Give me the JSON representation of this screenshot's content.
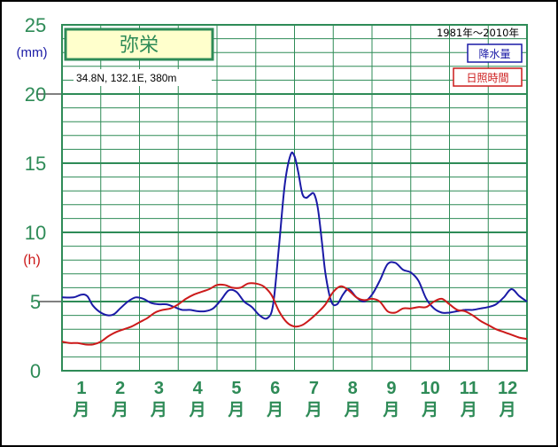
{
  "title_box": {
    "station": "弥栄"
  },
  "location": "34.8N,  132.1E,  380m",
  "period": "1981年〜2010年",
  "legend": {
    "precip_label": "降水量",
    "sun_label": "日照時間"
  },
  "colors": {
    "grid": "#2e8b57",
    "precip": "#1a1aa6",
    "sunshine": "#cc1a1a",
    "title_bg": "#ffffcc"
  },
  "chart_data": {
    "type": "line",
    "title": "弥栄",
    "y_ticks": [
      "0",
      "5",
      "10",
      "15",
      "20",
      "25"
    ],
    "y_unit_precip": "(mm)",
    "y_unit_sun": "(h)",
    "x_major_labels": [
      "1",
      "2",
      "3",
      "4",
      "5",
      "6",
      "7",
      "8",
      "9",
      "10",
      "11",
      "12"
    ],
    "x_unit": "月",
    "ylim": [
      0,
      25
    ],
    "xlim": [
      0.5,
      12.5
    ],
    "grid": true,
    "legend_position": "top-right",
    "series": [
      {
        "name": "降水量",
        "color": "#1a1aa6",
        "x": [
          0.5,
          0.8,
          1.0,
          1.15,
          1.3,
          1.5,
          1.7,
          1.85,
          2.0,
          2.2,
          2.4,
          2.6,
          2.8,
          3.0,
          3.2,
          3.4,
          3.6,
          3.8,
          4.0,
          4.2,
          4.4,
          4.6,
          4.8,
          5.0,
          5.2,
          5.4,
          5.6,
          5.8,
          5.95,
          6.1,
          6.25,
          6.4,
          6.5,
          6.6,
          6.7,
          6.8,
          6.9,
          7.0,
          7.1,
          7.2,
          7.3,
          7.45,
          7.6,
          7.75,
          7.9,
          8.1,
          8.3,
          8.5,
          8.7,
          8.9,
          9.1,
          9.3,
          9.5,
          9.7,
          9.9,
          10.1,
          10.3,
          10.5,
          10.7,
          10.9,
          11.1,
          11.3,
          11.5,
          11.7,
          11.9,
          12.1,
          12.3,
          12.5
        ],
        "values": [
          5.3,
          5.3,
          5.5,
          5.4,
          4.7,
          4.2,
          4.0,
          4.1,
          4.5,
          5.0,
          5.3,
          5.2,
          4.9,
          4.8,
          4.8,
          4.6,
          4.4,
          4.4,
          4.3,
          4.3,
          4.5,
          5.1,
          5.8,
          5.7,
          5.0,
          4.6,
          4.0,
          3.8,
          4.8,
          9.0,
          13.5,
          15.6,
          15.5,
          14.3,
          12.8,
          12.5,
          12.7,
          12.8,
          11.8,
          9.5,
          7.0,
          5.0,
          4.8,
          5.5,
          5.9,
          5.3,
          5.0,
          5.5,
          6.5,
          7.7,
          7.8,
          7.3,
          7.1,
          6.5,
          5.2,
          4.5,
          4.2,
          4.2,
          4.3,
          4.4,
          4.4,
          4.5,
          4.6,
          4.8,
          5.3,
          5.9,
          5.4,
          5.0
        ]
      },
      {
        "name": "日照時間",
        "color": "#cc1a1a",
        "x": [
          0.5,
          0.7,
          0.9,
          1.1,
          1.3,
          1.5,
          1.7,
          1.9,
          2.1,
          2.3,
          2.5,
          2.7,
          2.9,
          3.1,
          3.3,
          3.5,
          3.7,
          3.9,
          4.1,
          4.3,
          4.5,
          4.7,
          4.9,
          5.1,
          5.3,
          5.5,
          5.7,
          5.9,
          6.1,
          6.3,
          6.5,
          6.7,
          6.9,
          7.1,
          7.3,
          7.5,
          7.7,
          7.9,
          8.1,
          8.3,
          8.5,
          8.7,
          8.9,
          9.1,
          9.3,
          9.5,
          9.7,
          9.9,
          10.1,
          10.3,
          10.5,
          10.7,
          10.9,
          11.1,
          11.3,
          11.5,
          11.7,
          11.9,
          12.1,
          12.3,
          12.5
        ],
        "values": [
          2.1,
          2.0,
          2.0,
          1.9,
          1.9,
          2.1,
          2.5,
          2.8,
          3.0,
          3.2,
          3.5,
          3.8,
          4.2,
          4.4,
          4.5,
          4.8,
          5.2,
          5.5,
          5.7,
          5.9,
          6.2,
          6.2,
          6.0,
          6.0,
          6.3,
          6.3,
          6.1,
          5.5,
          4.3,
          3.5,
          3.2,
          3.3,
          3.7,
          4.2,
          4.8,
          5.7,
          6.1,
          5.8,
          5.3,
          5.1,
          5.2,
          5.0,
          4.3,
          4.2,
          4.5,
          4.5,
          4.6,
          4.6,
          5.0,
          5.2,
          4.8,
          4.4,
          4.3,
          4.0,
          3.6,
          3.3,
          3.0,
          2.8,
          2.6,
          2.4,
          2.3
        ]
      }
    ]
  }
}
